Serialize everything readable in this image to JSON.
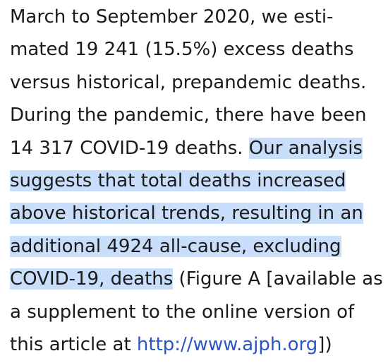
{
  "paragraph": {
    "line1": "March to September 2020, we esti-",
    "line2": "mated 19 241 (15.5%) excess deaths",
    "line3": "versus historical, prepandemic deaths.",
    "line4": "During the pandemic, there have been",
    "line5_plain": "14 317 COVID-19 deaths. ",
    "line5_highlight": "Our analysis",
    "line6_highlight": "suggests that total deaths increased",
    "line7_highlight": "above historical trends, resulting in an",
    "line8_highlight": "additional 4924 all-cause, excluding",
    "line9_highlight": "COVID-19, deaths",
    "line9_plain": " (Figure A [available as",
    "line10": "a supplement to the online version of",
    "line11_plain": "this article at ",
    "line11_link": "http://www.ajph.org",
    "line11_end": "])"
  },
  "colors": {
    "text": "#1a1a1a",
    "highlight": "#c9defb",
    "link": "#2a55c4"
  }
}
